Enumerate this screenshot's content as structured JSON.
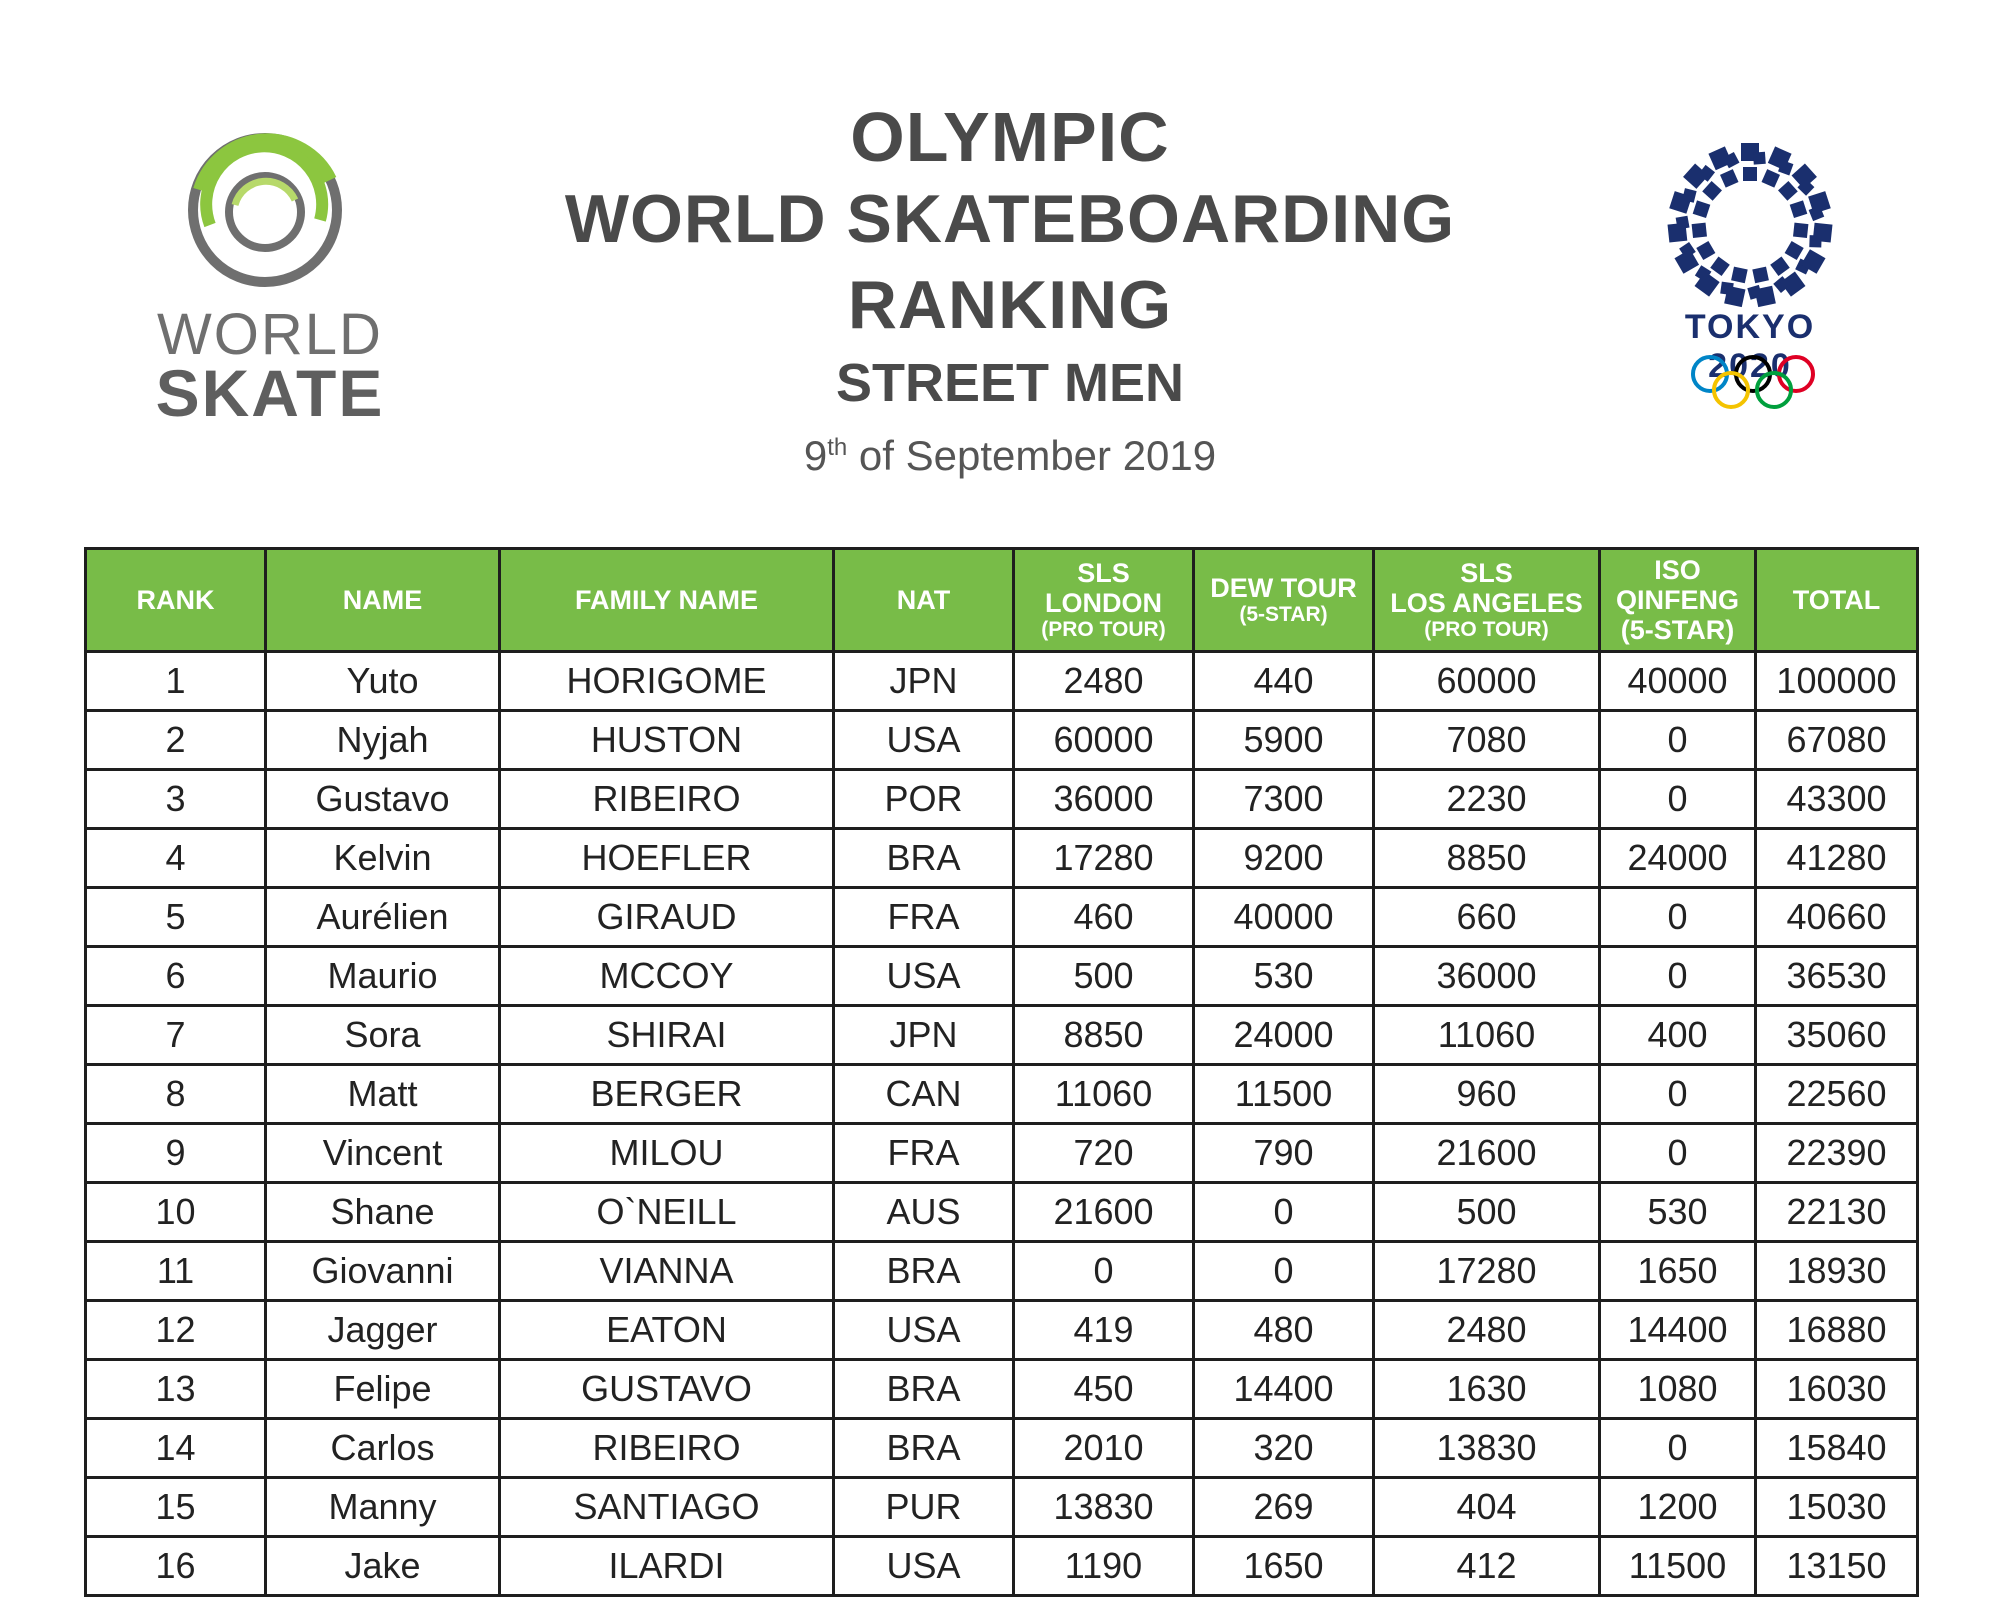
{
  "header": {
    "title_line1": "OLYMPIC",
    "title_line2": "WORLD SKATEBOARDING RANKING",
    "title_line3": "STREET MEN",
    "date_day": "9",
    "date_sup": "th",
    "date_rest": " of September 2019"
  },
  "logos": {
    "world_skate_word1": "WORLD",
    "world_skate_word2": "SKATE",
    "tokyo_text": "TOKYO 2020",
    "accent_green": "#8cc63f",
    "tokyo_blue": "#1a2f6e"
  },
  "table": {
    "header_color": "#78bc48",
    "columns": {
      "rank": "RANK",
      "name": "NAME",
      "family": "FAMILY NAME",
      "nat": "NAT",
      "sls_london_1": "SLS",
      "sls_london_2": "LONDON",
      "sls_london_3": "(PRO TOUR)",
      "dew_1": "DEW TOUR",
      "dew_2": "(5-STAR)",
      "sls_la_1": "SLS",
      "sls_la_2": "LOS ANGELES",
      "sls_la_3": "(PRO TOUR)",
      "iso_1": "ISO",
      "iso_2": "QINFENG",
      "iso_3": "(5-STAR)",
      "total": "TOTAL"
    },
    "rows": [
      [
        "1",
        "Yuto",
        "HORIGOME",
        "JPN",
        "2480",
        "440",
        "60000",
        "40000",
        "100000"
      ],
      [
        "2",
        "Nyjah",
        "HUSTON",
        "USA",
        "60000",
        "5900",
        "7080",
        "0",
        "67080"
      ],
      [
        "3",
        "Gustavo",
        "RIBEIRO",
        "POR",
        "36000",
        "7300",
        "2230",
        "0",
        "43300"
      ],
      [
        "4",
        "Kelvin",
        "HOEFLER",
        "BRA",
        "17280",
        "9200",
        "8850",
        "24000",
        "41280"
      ],
      [
        "5",
        "Aurélien",
        "GIRAUD",
        "FRA",
        "460",
        "40000",
        "660",
        "0",
        "40660"
      ],
      [
        "6",
        "Maurio",
        "MCCOY",
        "USA",
        "500",
        "530",
        "36000",
        "0",
        "36530"
      ],
      [
        "7",
        "Sora",
        "SHIRAI",
        "JPN",
        "8850",
        "24000",
        "11060",
        "400",
        "35060"
      ],
      [
        "8",
        "Matt",
        "BERGER",
        "CAN",
        "11060",
        "11500",
        "960",
        "0",
        "22560"
      ],
      [
        "9",
        "Vincent",
        "MILOU",
        "FRA",
        "720",
        "790",
        "21600",
        "0",
        "22390"
      ],
      [
        "10",
        "Shane",
        "O`NEILL",
        "AUS",
        "21600",
        "0",
        "500",
        "530",
        "22130"
      ],
      [
        "11",
        "Giovanni",
        "VIANNA",
        "BRA",
        "0",
        "0",
        "17280",
        "1650",
        "18930"
      ],
      [
        "12",
        "Jagger",
        "EATON",
        "USA",
        "419",
        "480",
        "2480",
        "14400",
        "16880"
      ],
      [
        "13",
        "Felipe",
        "GUSTAVO",
        "BRA",
        "450",
        "14400",
        "1630",
        "1080",
        "16030"
      ],
      [
        "14",
        "Carlos",
        "RIBEIRO",
        "BRA",
        "2010",
        "320",
        "13830",
        "0",
        "15840"
      ],
      [
        "15",
        "Manny",
        "SANTIAGO",
        "PUR",
        "13830",
        "269",
        "404",
        "1200",
        "15030"
      ],
      [
        "16",
        "Jake",
        "ILARDI",
        "USA",
        "1190",
        "1650",
        "412",
        "11500",
        "13150"
      ]
    ]
  }
}
